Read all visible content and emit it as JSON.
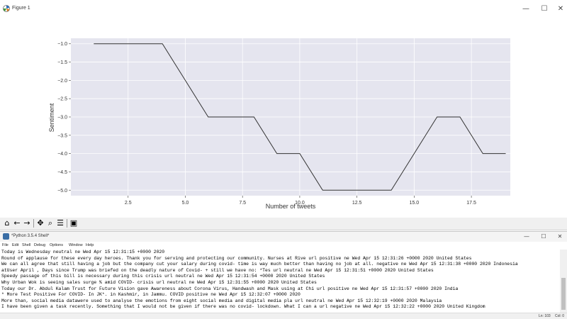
{
  "figure": {
    "title": "Figure 1",
    "window_buttons": {
      "minimize": "—",
      "maximize": "☐",
      "close": "✕"
    }
  },
  "toolbar": {
    "icons": [
      "home-icon",
      "back-arrow-icon",
      "forward-arrow-icon",
      "pan-icon",
      "zoom-icon",
      "subplots-icon",
      "save-icon"
    ],
    "glyphs": {
      "home": "⌂",
      "back": "←",
      "forward": "→",
      "pan": "✥",
      "zoom": "⌕",
      "subplots": "☰",
      "save": "▣"
    }
  },
  "chart_data": {
    "type": "line",
    "xlabel": "Number of tweets",
    "ylabel": "Sentiment",
    "xlim": [
      0.0,
      19.2
    ],
    "ylim": [
      -5.15,
      -0.85
    ],
    "xticks": [
      2.5,
      5.0,
      7.5,
      10.0,
      12.5,
      15.0,
      17.5
    ],
    "xtick_labels": [
      "2.5",
      "5.0",
      "7.5",
      "10.0",
      "12.5",
      "15.0",
      "17.5"
    ],
    "yticks": [
      -1.0,
      -1.5,
      -2.0,
      -2.5,
      -3.0,
      -3.5,
      -4.0,
      -4.5,
      -5.0
    ],
    "ytick_labels": [
      "−1.0",
      "−1.5",
      "−2.0",
      "−2.5",
      "−3.0",
      "−3.5",
      "−4.0",
      "−4.5",
      "−5.0"
    ],
    "grid": true,
    "series": [
      {
        "x": [
          1,
          2,
          3,
          4,
          5,
          6,
          7,
          8,
          9,
          10,
          11,
          12,
          13,
          14,
          15,
          16,
          17,
          18,
          19
        ],
        "y": [
          -1,
          -1,
          -1,
          -1,
          -2,
          -3,
          -3,
          -3,
          -4,
          -4,
          -5,
          -5,
          -5,
          -5,
          -4,
          -3,
          -3,
          -4,
          -4
        ]
      }
    ],
    "colors": {
      "background": "#e5e5ef",
      "grid": "#ffffff",
      "line": "#333333"
    }
  },
  "shell": {
    "title": "*Python 3.5.4 Shell*",
    "menu": [
      "File",
      "Edit",
      "Shell",
      "Debug",
      "Options",
      "Window",
      "Help"
    ],
    "lines": [
      "Today is Wednesday neutral ne Wed Apr 15 12:31:15 +0000 2020",
      "Round of applause  for these every day heroes. Thank you for serving and protecting our community. Nurses at Rive url positive ne Wed Apr 15 12:31:26 +0000 2020 United States",
      "We can all agree that still having a job but the company cut your salary during covid- time is way much better than having no job at all. negative ne Wed Apr 15 12:31:38 +0000 2020 Indonesia",
      "atUser April ,  Days since Trump was briefed on the deadly nature of Covid- + still we have no: *Tes url neutral ne Wed Apr 15 12:31:51 +0000 2020 United States",
      "Speedy passage of this bill is necessary during this crisis  url neutral ne Wed Apr 15 12:31:54 +0000 2020 United States",
      "Why Urban Wok is seeing sales surge % amid COVID- crisis url neutral ne Wed Apr 15 12:31:55 +0000 2020 United States",
      "Today our Dr. Abdul Kalam Trust for Future Vision gave Awareness about Corona Virus, Handwash and Mask using at Chi url positive ne Wed Apr 15 12:31:57 +0000 2020 India",
      " * More Test Positive For COVID- In JK*.  in Kashmir,  in Jammu.  COVID positive ne Wed Apr 15 12:32:07 +0000 2020",
      "More than, social media datawere used to analyse the emotions from eight social media and digital media pla url neutral ne Wed Apr 15 12:32:19 +0000 2020 Malaysia",
      "I have been given a task recently. Something that I would not be given if there was no covid- lockdown. What I can a url negative ne Wed Apr 15 12:32:22 +0000 2020 United Kingdom"
    ],
    "status": {
      "line": "Ln: 103",
      "col": "Col: 0"
    }
  }
}
